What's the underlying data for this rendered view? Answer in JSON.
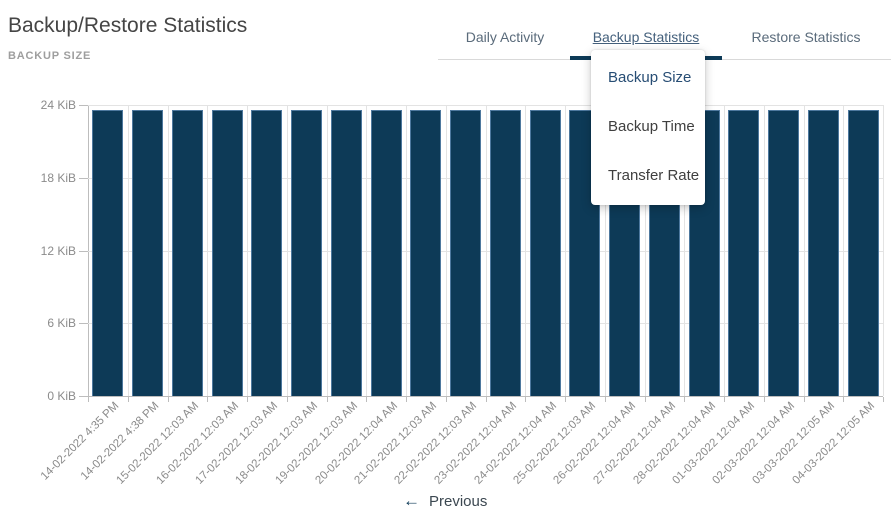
{
  "header": {
    "title": "Backup/Restore Statistics",
    "subtitle": "BACKUP SIZE"
  },
  "tabs": [
    {
      "label": "Daily Activity",
      "active": false
    },
    {
      "label": "Backup Statistics",
      "active": true
    },
    {
      "label": "Restore Statistics",
      "active": false
    }
  ],
  "menu": {
    "items": [
      {
        "label": "Backup Size",
        "selected": true
      },
      {
        "label": "Backup Time",
        "selected": false
      },
      {
        "label": "Transfer Rate",
        "selected": false
      }
    ]
  },
  "pager": {
    "previous_label": "Previous",
    "arrow_icon": "arrow-left-icon"
  },
  "colors": {
    "accent_navy": "#0d3a57",
    "bar_fill": "#0d3a57",
    "bar_edge": "#4d789e",
    "grid_line": "#e3e3e3",
    "axis_line": "#bdbdbd",
    "label_gray": "#8b8b8b"
  },
  "chart_data": {
    "type": "bar",
    "title": "BACKUP SIZE",
    "xlabel": "",
    "ylabel": "",
    "unit": "KiB",
    "ylim": [
      0,
      24
    ],
    "ytick_labels": [
      "0 KiB",
      "6 KiB",
      "12 KiB",
      "18 KiB",
      "24 KiB"
    ],
    "grid": true,
    "legend": false,
    "categories": [
      "14-02-2022 4:35 PM",
      "14-02-2022 4:38 PM",
      "15-02-2022 12:03 AM",
      "16-02-2022 12:03 AM",
      "17-02-2022 12:03 AM",
      "18-02-2022 12:03 AM",
      "19-02-2022 12:03 AM",
      "20-02-2022 12:04 AM",
      "21-02-2022 12:03 AM",
      "22-02-2022 12:03 AM",
      "23-02-2022 12:04 AM",
      "24-02-2022 12:04 AM",
      "25-02-2022 12:03 AM",
      "26-02-2022 12:04 AM",
      "27-02-2022 12:04 AM",
      "28-02-2022 12:04 AM",
      "01-03-2022 12:04 AM",
      "02-03-2022 12:04 AM",
      "03-03-2022 12:05 AM",
      "04-03-2022 12:05 AM"
    ],
    "values": [
      23.6,
      23.6,
      23.6,
      23.6,
      23.6,
      23.6,
      23.6,
      23.6,
      23.6,
      23.6,
      23.6,
      23.6,
      23.6,
      23.6,
      23.6,
      23.6,
      23.6,
      23.6,
      23.6,
      23.6
    ]
  }
}
